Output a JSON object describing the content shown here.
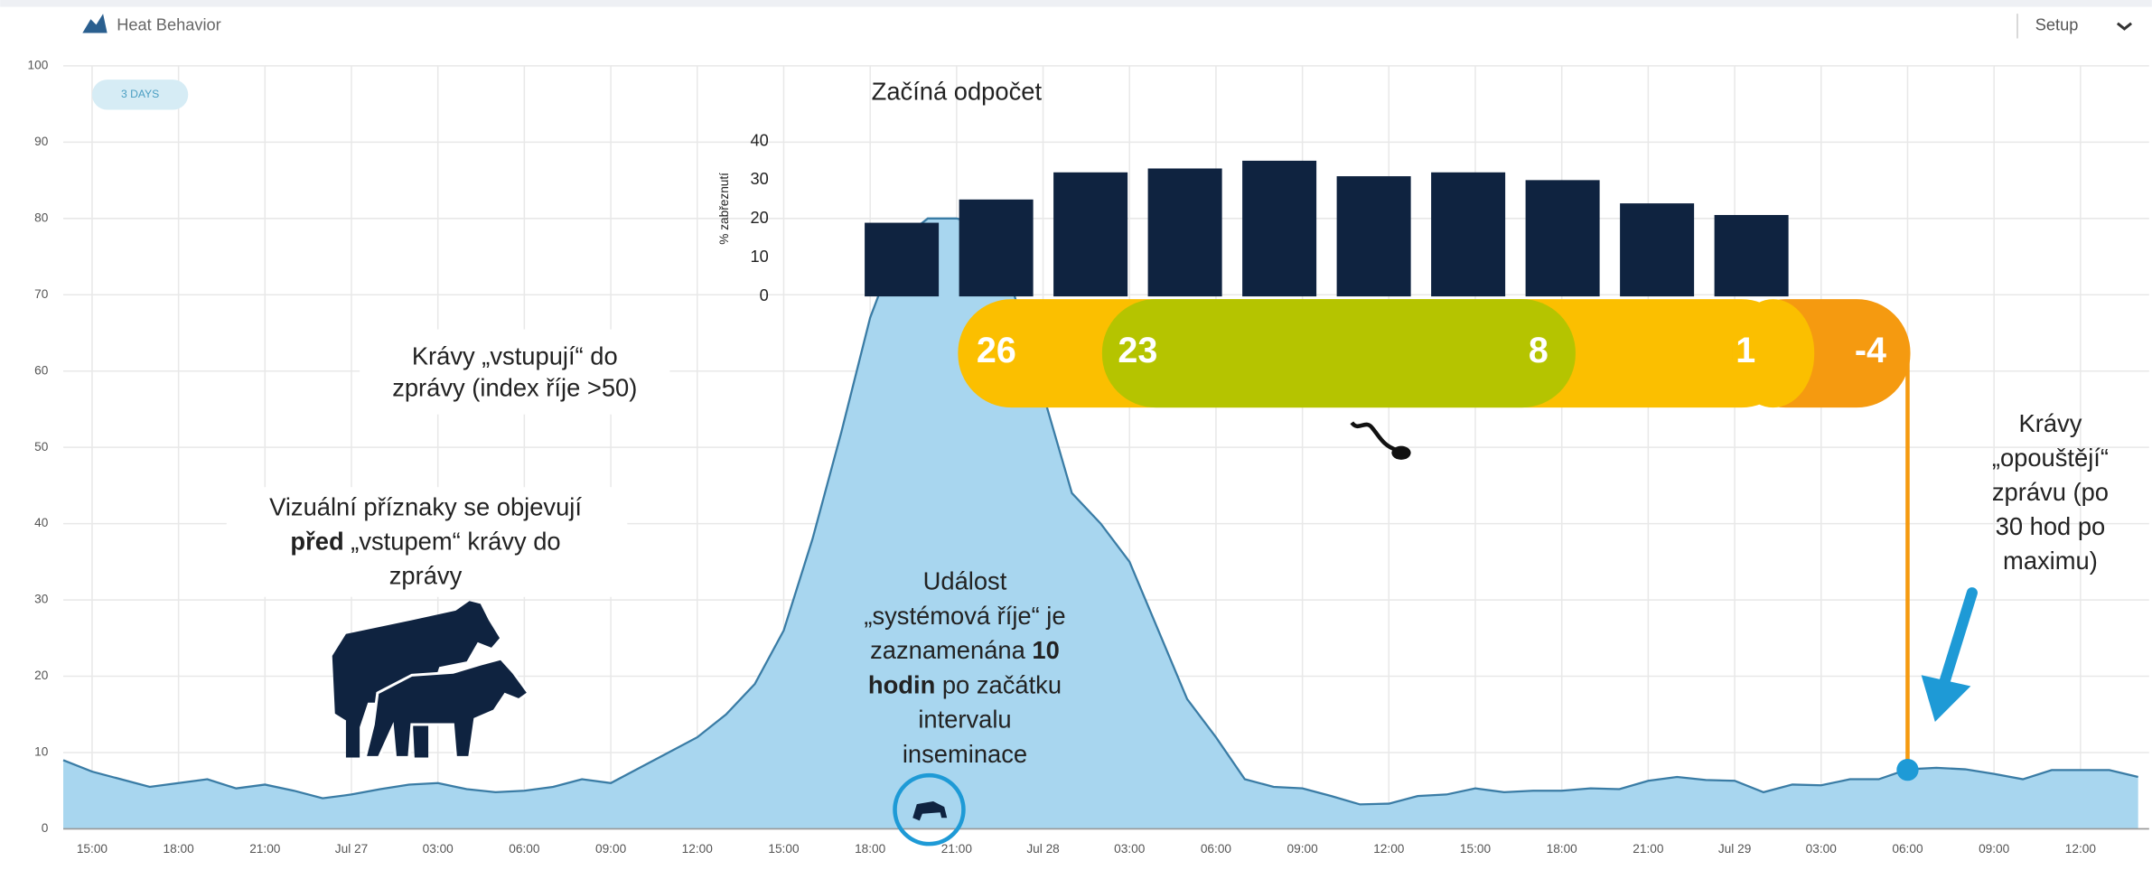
{
  "header": {
    "title": "Heat Behavior",
    "setup": "Setup",
    "range": "3 DAYS"
  },
  "chart_data": [
    {
      "type": "area",
      "categories": [
        null,
        "15:00",
        null,
        null,
        "18:00",
        null,
        null,
        "21:00",
        null,
        null,
        "Jul 27",
        null,
        null,
        "03:00",
        null,
        null,
        "06:00",
        null,
        null,
        "09:00",
        null,
        null,
        "12:00",
        null,
        null,
        "15:00",
        null,
        null,
        "18:00",
        null,
        null,
        "21:00",
        null,
        null,
        "Jul 28",
        null,
        null,
        "03:00",
        null,
        null,
        "06:00",
        null,
        null,
        "09:00",
        null,
        null,
        "12:00",
        null,
        null,
        "15:00",
        null,
        null,
        "18:00",
        null,
        null,
        "21:00",
        null,
        null,
        "Jul 29",
        null,
        null,
        "03:00",
        null,
        null,
        "06:00",
        null,
        null,
        "09:00",
        null,
        null,
        "12:00",
        null,
        null
      ],
      "values": [
        9,
        7.5,
        6.5,
        5.5,
        6,
        6.5,
        5.3,
        5.8,
        5,
        4,
        4.5,
        5.2,
        5.8,
        6,
        5.2,
        4.8,
        5,
        5.5,
        6.5,
        6,
        8,
        10,
        12,
        15,
        19,
        26,
        38,
        52,
        67,
        77,
        80,
        80,
        79,
        70,
        57,
        44,
        40,
        35,
        26,
        17,
        12,
        6.5,
        5.5,
        5.3,
        4.3,
        3.2,
        3.3,
        4.3,
        4.5,
        5.3,
        4.8,
        5,
        5,
        5.3,
        5.2,
        6.3,
        6.8,
        6.4,
        6.3,
        4.8,
        5.8,
        5.7,
        6.5,
        6.5,
        7.8,
        8,
        7.8,
        7.2,
        6.5,
        7.7,
        7.7,
        7.7,
        6.8
      ],
      "color": "#a8d6ef",
      "line_color": "#3a7ca5",
      "ylim": [
        0,
        100
      ],
      "yticks": [
        0,
        10,
        20,
        30,
        40,
        50,
        60,
        70,
        80,
        90,
        100
      ],
      "grid": true
    },
    {
      "type": "bar",
      "title": "Začíná odpočet",
      "y_label": "% zabřeznutí",
      "values": [
        19,
        25,
        32,
        33,
        35,
        31,
        32,
        30,
        24,
        21
      ],
      "color": "#0f2340",
      "ylim": [
        0,
        40
      ],
      "yticks": [
        0,
        10,
        20,
        30,
        40
      ]
    }
  ],
  "countdown": [
    "26",
    "23",
    "8",
    "1",
    "-4"
  ],
  "annotations": {
    "enter": [
      [
        {
          "text": "Krávy „vstupují“ do"
        }
      ],
      [
        {
          "text": "zprávy (index říje >50)"
        }
      ]
    ],
    "visual": [
      [
        {
          "text": "Vizuální příznaky se objevují"
        }
      ],
      [
        {
          "text": "před",
          "bold": true
        },
        {
          "text": " „vstupem“ krávy do"
        }
      ],
      [
        {
          "text": "zprávy"
        }
      ]
    ],
    "event": [
      [
        {
          "text": "Událost"
        }
      ],
      [
        {
          "text": "„systémová říje“ je"
        }
      ],
      [
        {
          "text": "zaznamenána "
        },
        {
          "text": "10",
          "bold": true
        }
      ],
      [
        {
          "text": "hodin",
          "bold": true
        },
        {
          "text": " po začátku"
        }
      ],
      [
        {
          "text": "intervalu"
        }
      ],
      [
        {
          "text": "inseminace"
        }
      ]
    ],
    "leave": [
      [
        {
          "text": "Krávy"
        }
      ],
      [
        {
          "text": "„opouštějí“"
        }
      ],
      [
        {
          "text": "zprávu (po"
        }
      ],
      [
        {
          "text": "30 hod po"
        }
      ],
      [
        {
          "text": "maximu)"
        }
      ]
    ]
  }
}
